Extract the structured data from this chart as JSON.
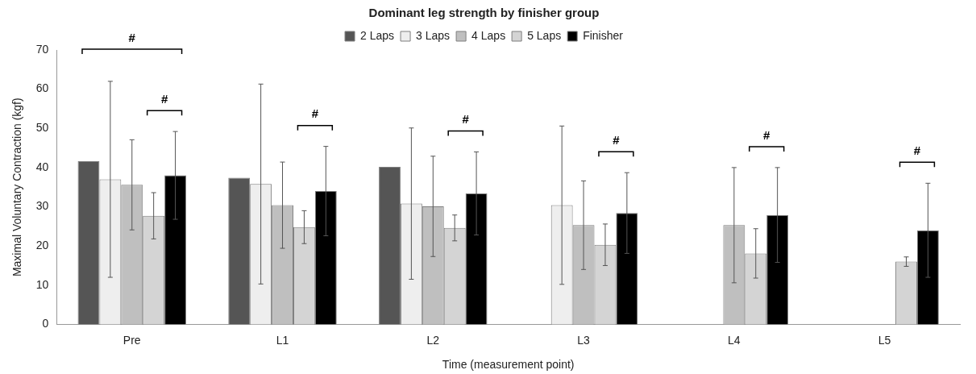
{
  "chart_data": {
    "type": "bar",
    "title": "Dominant leg strength by finisher group",
    "xlabel": "Time (measurement point)",
    "ylabel": "Maximal Voluntary Contraction (kgf)",
    "categories": [
      "Pre",
      "L1",
      "L2",
      "L3",
      "L4",
      "L5"
    ],
    "series": [
      {
        "name": "2 Laps",
        "color": "#555555",
        "values": [
          41.6,
          37.4,
          40.2,
          null,
          null,
          null
        ]
      },
      {
        "name": "3 Laps",
        "color": "#eeeeee",
        "values": [
          37,
          35.8,
          30.8,
          30.4,
          null,
          null
        ],
        "errors": [
          25,
          25.5,
          19.3,
          20.2,
          null,
          null
        ]
      },
      {
        "name": "4 Laps",
        "color": "#bfbfbf",
        "values": [
          35.6,
          30.4,
          30.1,
          25.3,
          25.3,
          null
        ],
        "errors": [
          11.5,
          11,
          12.8,
          11.3,
          14.7,
          null
        ]
      },
      {
        "name": "5 Laps",
        "color": "#d4d4d4",
        "values": [
          27.7,
          24.8,
          24.6,
          20.3,
          18.1,
          16
        ],
        "errors": [
          5.9,
          4.2,
          3.3,
          5.3,
          6.3,
          1.2
        ]
      },
      {
        "name": "Finisher",
        "color": "#000000",
        "values": [
          38,
          34,
          33.4,
          28.4,
          27.9,
          24
        ],
        "errors": [
          11.2,
          11.4,
          10.6,
          10.3,
          12.1,
          12
        ]
      }
    ],
    "ylim": [
      0,
      70
    ],
    "yticks": [
      0,
      10,
      20,
      30,
      40,
      50,
      60,
      70
    ],
    "grid": false,
    "legend": "top",
    "annotations": [
      "#",
      "#",
      "#",
      "#",
      "#",
      "#",
      "#"
    ]
  }
}
